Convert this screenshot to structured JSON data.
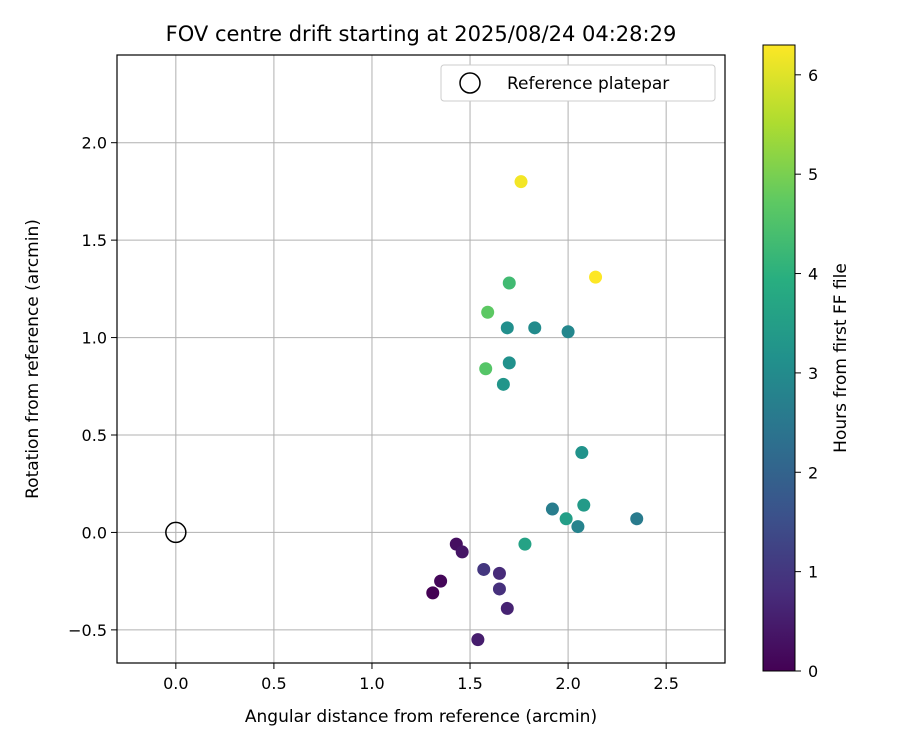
{
  "chart_data": {
    "type": "scatter",
    "title": "FOV centre drift starting at 2025/08/24 04:28:29",
    "xlabel": "Angular distance from reference (arcmin)",
    "ylabel": "Rotation from reference (arcmin)",
    "xlim": [
      -0.3,
      2.8
    ],
    "ylim": [
      -0.67,
      2.45
    ],
    "xticks": [
      0.0,
      0.5,
      1.0,
      1.5,
      2.0,
      2.5
    ],
    "xtick_labels": [
      "0.0",
      "0.5",
      "1.0",
      "1.5",
      "2.0",
      "2.5"
    ],
    "yticks": [
      -0.5,
      0.0,
      0.5,
      1.0,
      1.5,
      2.0
    ],
    "ytick_labels": [
      "−0.5",
      "0.0",
      "0.5",
      "1.0",
      "1.5",
      "2.0"
    ],
    "grid": true,
    "legend": {
      "position": "upper right",
      "entries": [
        "Reference platepar"
      ]
    },
    "reference_point": {
      "name": "Reference platepar",
      "x": 0.0,
      "y": 0.0
    },
    "colorbar": {
      "label": "Hours from first FF file",
      "colormap": "viridis",
      "range": [
        0,
        6.3
      ],
      "ticks": [
        0,
        1,
        2,
        3,
        4,
        5,
        6
      ],
      "tick_labels": [
        "0",
        "1",
        "2",
        "3",
        "4",
        "5",
        "6"
      ]
    },
    "points": [
      {
        "x": 1.31,
        "y": -0.31,
        "hours": 0.0
      },
      {
        "x": 1.35,
        "y": -0.25,
        "hours": 0.1
      },
      {
        "x": 1.43,
        "y": -0.06,
        "hours": 0.25
      },
      {
        "x": 1.46,
        "y": -0.1,
        "hours": 0.35
      },
      {
        "x": 1.54,
        "y": -0.55,
        "hours": 0.5
      },
      {
        "x": 1.69,
        "y": -0.39,
        "hours": 0.6
      },
      {
        "x": 1.65,
        "y": -0.21,
        "hours": 0.75
      },
      {
        "x": 1.65,
        "y": -0.29,
        "hours": 0.85
      },
      {
        "x": 1.57,
        "y": -0.19,
        "hours": 1.0
      },
      {
        "x": 2.35,
        "y": 0.07,
        "hours": 2.6
      },
      {
        "x": 1.92,
        "y": 0.12,
        "hours": 2.65
      },
      {
        "x": 2.05,
        "y": 0.03,
        "hours": 2.8
      },
      {
        "x": 2.07,
        "y": 0.41,
        "hours": 3.2
      },
      {
        "x": 2.08,
        "y": 0.14,
        "hours": 3.4
      },
      {
        "x": 1.99,
        "y": 0.07,
        "hours": 3.5
      },
      {
        "x": 1.78,
        "y": -0.06,
        "hours": 3.6
      },
      {
        "x": 2.0,
        "y": 1.03,
        "hours": 2.9
      },
      {
        "x": 1.83,
        "y": 1.05,
        "hours": 3.0
      },
      {
        "x": 1.69,
        "y": 1.05,
        "hours": 3.1
      },
      {
        "x": 1.7,
        "y": 0.87,
        "hours": 3.15
      },
      {
        "x": 1.67,
        "y": 0.76,
        "hours": 3.25
      },
      {
        "x": 1.7,
        "y": 1.28,
        "hours": 4.3
      },
      {
        "x": 1.59,
        "y": 1.13,
        "hours": 4.7
      },
      {
        "x": 1.58,
        "y": 0.84,
        "hours": 4.6
      },
      {
        "x": 1.76,
        "y": 1.8,
        "hours": 6.2
      },
      {
        "x": 2.14,
        "y": 1.31,
        "hours": 6.3
      }
    ]
  }
}
